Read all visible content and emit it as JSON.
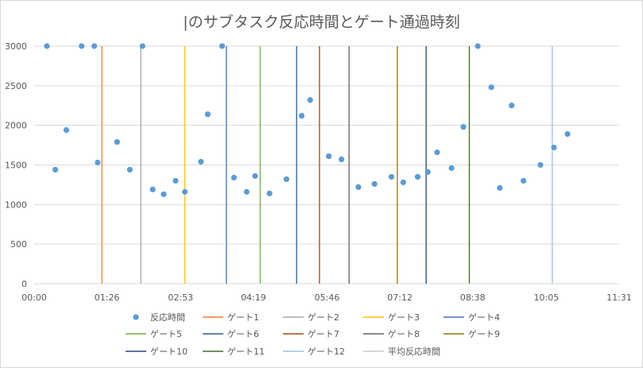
{
  "chart_data": {
    "type": "scatter",
    "title": "|のサブタスク反応時間とゲート通過時刻",
    "xlabel": "",
    "ylabel": "",
    "ylim": [
      0,
      3000
    ],
    "yticks": [
      "0",
      "500",
      "1000",
      "1500",
      "2000",
      "2500",
      "3000"
    ],
    "xlim": [
      "00:00",
      "11:31"
    ],
    "xticks": [
      "00:00",
      "01:26",
      "02:53",
      "04:19",
      "05:46",
      "07:12",
      "08:38",
      "10:05",
      "11:31"
    ],
    "grid": true,
    "legend_position": "bottom",
    "series": [
      {
        "name": "反応時間",
        "kind": "points",
        "color": "#5b9bd5",
        "points": [
          [
            "00:15",
            3000
          ],
          [
            "00:25",
            1440
          ],
          [
            "00:38",
            1940
          ],
          [
            "00:56",
            3000
          ],
          [
            "01:11",
            3000
          ],
          [
            "01:15",
            1530
          ],
          [
            "01:38",
            1790
          ],
          [
            "01:53",
            1440
          ],
          [
            "02:08",
            3000
          ],
          [
            "02:20",
            1190
          ],
          [
            "02:33",
            1130
          ],
          [
            "02:47",
            1300
          ],
          [
            "02:58",
            1160
          ],
          [
            "03:17",
            1540
          ],
          [
            "03:25",
            2140
          ],
          [
            "03:42",
            3000
          ],
          [
            "03:56",
            1340
          ],
          [
            "04:11",
            1160
          ],
          [
            "04:21",
            1360
          ],
          [
            "04:38",
            1140
          ],
          [
            "04:58",
            1320
          ],
          [
            "05:16",
            2120
          ],
          [
            "05:26",
            2320
          ],
          [
            "05:48",
            1610
          ],
          [
            "06:03",
            1570
          ],
          [
            "06:23",
            1220
          ],
          [
            "06:42",
            1260
          ],
          [
            "07:02",
            1350
          ],
          [
            "07:16",
            1280
          ],
          [
            "07:33",
            1350
          ],
          [
            "07:45",
            1410
          ],
          [
            "07:56",
            1660
          ],
          [
            "08:13",
            1460
          ],
          [
            "08:27",
            1980
          ],
          [
            "08:44",
            3000
          ],
          [
            "09:00",
            2480
          ],
          [
            "09:10",
            1210
          ],
          [
            "09:24",
            2250
          ],
          [
            "09:38",
            1300
          ],
          [
            "09:58",
            1500
          ],
          [
            "10:14",
            1720
          ],
          [
            "10:30",
            1890
          ]
        ]
      },
      {
        "name": "ゲート1",
        "kind": "gate",
        "color": "#ed7d31",
        "x": "01:20"
      },
      {
        "name": "ゲート2",
        "kind": "gate",
        "color": "#a5a5a5",
        "x": "02:06"
      },
      {
        "name": "ゲート3",
        "kind": "gate",
        "color": "#ffc000",
        "x": "02:58"
      },
      {
        "name": "ゲート4",
        "kind": "gate",
        "color": "#4472c4",
        "x": "03:47"
      },
      {
        "name": "ゲート5",
        "kind": "gate",
        "color": "#70ad47",
        "x": "04:27"
      },
      {
        "name": "ゲート6",
        "kind": "gate",
        "color": "#255e91",
        "x": "05:10"
      },
      {
        "name": "ゲート7",
        "kind": "gate",
        "color": "#9e480e",
        "x": "05:37"
      },
      {
        "name": "ゲート8",
        "kind": "gate",
        "color": "#636363",
        "x": "06:12"
      },
      {
        "name": "ゲート9",
        "kind": "gate",
        "color": "#997300",
        "x": "07:09"
      },
      {
        "name": "ゲート10",
        "kind": "gate",
        "color": "#264478",
        "x": "07:43"
      },
      {
        "name": "ゲート11",
        "kind": "gate",
        "color": "#43682b",
        "x": "08:34"
      },
      {
        "name": "ゲート12",
        "kind": "gate",
        "color": "#9dc3e6",
        "x": "10:12"
      },
      {
        "name": "平均反応時間",
        "kind": "line",
        "color": "#c9c9c9"
      }
    ]
  }
}
